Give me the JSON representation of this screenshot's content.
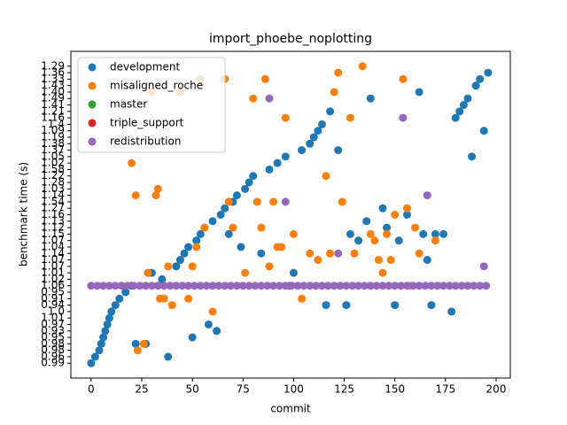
{
  "chart_data": {
    "type": "scatter",
    "title": "import_phoebe_noplotting",
    "x_label": "commit",
    "y_label": "benchmark time (s)",
    "xlim": [
      -10,
      207
    ],
    "xticks": [
      0,
      25,
      50,
      75,
      100,
      125,
      150,
      175,
      200
    ],
    "ylim": [
      -2.3,
      48.3
    ],
    "yticks": [
      {
        "value": 0,
        "label": "0.99"
      },
      {
        "value": 1,
        "label": "0.96"
      },
      {
        "value": 2,
        "label": "0.98"
      },
      {
        "value": 3,
        "label": "0.98"
      },
      {
        "value": 4,
        "label": "0.95"
      },
      {
        "value": 5,
        "label": "0.93"
      },
      {
        "value": 6,
        "label": "0.97"
      },
      {
        "value": 7,
        "label": "1.01"
      },
      {
        "value": 8,
        "label": "1.0"
      },
      {
        "value": 9,
        "label": "0.94"
      },
      {
        "value": 10,
        "label": "0.91"
      },
      {
        "value": 11,
        "label": "0.95"
      },
      {
        "value": 12,
        "label": "1.06"
      },
      {
        "value": 13,
        "label": "1.02"
      },
      {
        "value": 14,
        "label": "1.01"
      },
      {
        "value": 15,
        "label": "1.07"
      },
      {
        "value": 16,
        "label": "1.07"
      },
      {
        "value": 17,
        "label": "1.14"
      },
      {
        "value": 18,
        "label": "1.04"
      },
      {
        "value": 19,
        "label": "1.07"
      },
      {
        "value": 20,
        "label": "1.15"
      },
      {
        "value": 21,
        "label": "1.12"
      },
      {
        "value": 22,
        "label": "1.13"
      },
      {
        "value": 23,
        "label": "1.16"
      },
      {
        "value": 24,
        "label": "1.27"
      },
      {
        "value": 25,
        "label": "1.54"
      },
      {
        "value": 26,
        "label": "1.14"
      },
      {
        "value": 27,
        "label": "1.03"
      },
      {
        "value": 28,
        "label": "1.28"
      },
      {
        "value": 29,
        "label": "1.22"
      },
      {
        "value": 30,
        "label": "1.58"
      },
      {
        "value": 31,
        "label": "1.02"
      },
      {
        "value": 32,
        "label": "1.05"
      },
      {
        "value": 33,
        "label": "1.37"
      },
      {
        "value": 34,
        "label": "1.38"
      },
      {
        "value": 35,
        "label": "1.19"
      },
      {
        "value": 36,
        "label": "1.09"
      },
      {
        "value": 37,
        "label": "1.4"
      },
      {
        "value": 38,
        "label": "1.16"
      },
      {
        "value": 39,
        "label": "1.21"
      },
      {
        "value": 40,
        "label": "1.41"
      },
      {
        "value": 41,
        "label": "1.49"
      },
      {
        "value": 42,
        "label": "1.40"
      },
      {
        "value": 43,
        "label": "1.43"
      },
      {
        "value": 44,
        "label": "1.33"
      },
      {
        "value": 45,
        "label": "1.36"
      },
      {
        "value": 46,
        "label": "1.29"
      }
    ],
    "legend": "upper left",
    "series": [
      {
        "name": "development",
        "color": "#1f77b4",
        "x": [
          0,
          2,
          4,
          5,
          6,
          7,
          8,
          9,
          10,
          12,
          14,
          17,
          20,
          22,
          27,
          30,
          35,
          38,
          42,
          44,
          46,
          48,
          50,
          52,
          54,
          56,
          58,
          60,
          62,
          64,
          66,
          68,
          70,
          72,
          74,
          76,
          78,
          80,
          84,
          88,
          92,
          96,
          98,
          100,
          104,
          108,
          110,
          112,
          114,
          116,
          118,
          122,
          126,
          128,
          132,
          136,
          138,
          144,
          146,
          150,
          152,
          156,
          162,
          164,
          166,
          168,
          170,
          174,
          178,
          180,
          182,
          184,
          186,
          188,
          190,
          192,
          194,
          196
        ],
        "values": [
          0,
          1,
          2,
          3,
          4,
          5,
          6,
          7,
          8,
          9,
          10,
          11,
          12,
          3,
          3,
          14,
          13,
          1,
          15,
          16,
          17,
          18,
          4,
          19,
          20,
          21,
          6,
          22,
          5,
          23,
          24,
          20,
          25,
          26,
          18,
          27,
          28,
          29,
          17,
          30,
          31,
          32,
          12,
          14,
          33,
          34,
          35,
          36,
          37,
          9,
          39,
          33,
          9,
          20,
          19,
          22,
          41,
          24,
          21,
          9,
          19,
          23,
          42,
          20,
          16,
          9,
          20,
          20,
          8,
          38,
          39,
          40,
          41,
          32,
          43,
          44,
          36,
          45
        ]
      },
      {
        "name": "misaligned_roche",
        "color": "#ff7f0e",
        "x": [
          20,
          22,
          23,
          26,
          28,
          30,
          32,
          33,
          34,
          36,
          38,
          40,
          44,
          48,
          50,
          52,
          54,
          56,
          60,
          66,
          68,
          70,
          76,
          80,
          82,
          84,
          86,
          88,
          90,
          92,
          94,
          96,
          100,
          104,
          108,
          112,
          116,
          118,
          120,
          122,
          124,
          128,
          130,
          134,
          138,
          140,
          142,
          144,
          146,
          148,
          150,
          154,
          156,
          158,
          160,
          162,
          170
        ],
        "values": [
          31,
          26,
          2,
          3,
          14,
          42,
          26,
          27,
          10,
          10,
          15,
          9,
          42,
          10,
          15,
          18,
          44,
          21,
          8,
          44,
          25,
          21,
          14,
          41,
          25,
          21,
          44,
          15,
          25,
          18,
          18,
          38,
          20,
          10,
          17,
          16,
          29,
          17,
          42,
          45,
          25,
          38,
          17,
          46,
          20,
          19,
          16,
          14,
          20,
          16,
          23,
          44,
          24,
          12,
          21,
          17,
          19
        ]
      },
      {
        "name": "master",
        "color": "#2ca02c",
        "x": [],
        "values": []
      },
      {
        "name": "triple_support",
        "color": "#d62728",
        "x": [],
        "values": []
      },
      {
        "name": "redistribution",
        "color": "#9467bd",
        "x": [
          0,
          3,
          6,
          9,
          12,
          15,
          18,
          21,
          24,
          27,
          30,
          33,
          36,
          39,
          42,
          45,
          48,
          51,
          54,
          57,
          60,
          63,
          66,
          69,
          72,
          75,
          78,
          81,
          84,
          87,
          90,
          93,
          96,
          99,
          102,
          105,
          108,
          111,
          114,
          117,
          120,
          123,
          126,
          129,
          132,
          135,
          138,
          141,
          144,
          147,
          150,
          153,
          156,
          159,
          162,
          165,
          168,
          171,
          174,
          177,
          180,
          183,
          186,
          189,
          192,
          195,
          88,
          96,
          122,
          154,
          166,
          194
        ],
        "values": [
          12,
          12,
          12,
          12,
          12,
          12,
          12,
          12,
          12,
          12,
          12,
          12,
          12,
          12,
          12,
          12,
          12,
          12,
          12,
          12,
          12,
          12,
          12,
          12,
          12,
          12,
          12,
          12,
          12,
          12,
          12,
          12,
          12,
          12,
          12,
          12,
          12,
          12,
          12,
          12,
          12,
          12,
          12,
          12,
          12,
          12,
          12,
          12,
          12,
          12,
          12,
          12,
          12,
          12,
          12,
          12,
          12,
          12,
          12,
          12,
          12,
          12,
          12,
          12,
          12,
          12,
          41,
          25,
          17,
          38,
          26,
          15
        ]
      }
    ]
  }
}
